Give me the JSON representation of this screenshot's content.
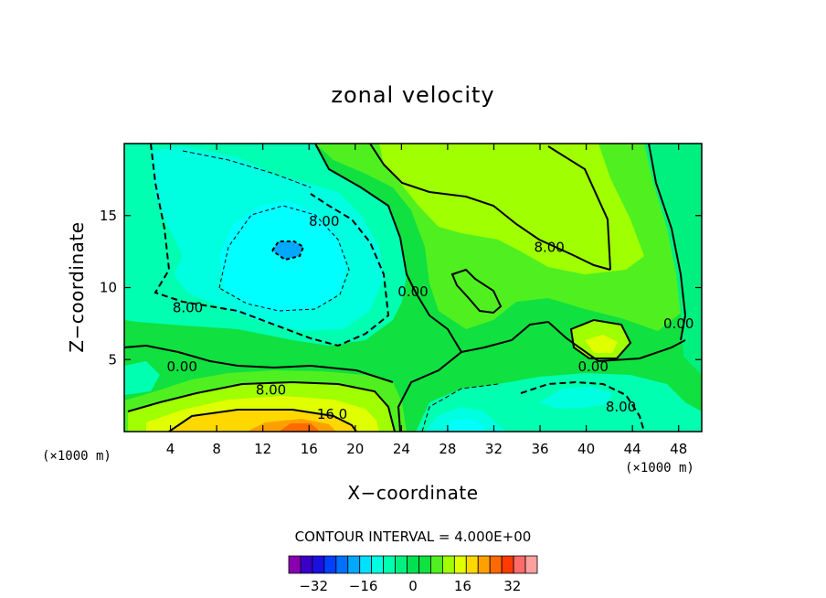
{
  "chart_data": {
    "type": "heatmap",
    "subtype": "filled-contour",
    "title": "zonal velocity",
    "xlabel": "X−coordinate",
    "ylabel": "Z−coordinate",
    "x_unit_label": "(×1000 m)",
    "x_unit_label_right": "(×1000 m)",
    "xlim": [
      0,
      50
    ],
    "ylim": [
      0,
      20
    ],
    "x_ticks": [
      4,
      8,
      12,
      16,
      20,
      24,
      28,
      32,
      36,
      40,
      44,
      48
    ],
    "y_ticks": [
      5,
      10,
      15
    ],
    "contour_interval_text": "CONTOUR INTERVAL = 4.000E+00",
    "contour_interval": 4,
    "colorbar": {
      "levels": [
        -40,
        -36,
        -32,
        -28,
        -24,
        -20,
        -16,
        -12,
        -8,
        -4,
        0,
        4,
        8,
        12,
        16,
        20,
        24,
        28,
        32,
        36,
        40
      ],
      "tick_labels": [
        "−32",
        "−16",
        "0",
        "16",
        "32"
      ],
      "tick_values": [
        -32,
        -16,
        0,
        16,
        32
      ],
      "colors": [
        "#8a00b0",
        "#3a00c8",
        "#1a10e0",
        "#0040ff",
        "#0070ff",
        "#00a8ff",
        "#00e0ff",
        "#00ffe0",
        "#00ffb0",
        "#00f080",
        "#00e050",
        "#10e040",
        "#50f020",
        "#a0ff00",
        "#e0ff00",
        "#ffd800",
        "#ffa000",
        "#ff6a00",
        "#ff3a00",
        "#ff6a6a",
        "#ffa0a0"
      ]
    },
    "contour_labels": [
      {
        "text": "8.00",
        "x": 17.3,
        "z": 14.6
      },
      {
        "text": "8.00",
        "x": 5.5,
        "z": 8.6
      },
      {
        "text": "8.00",
        "x": 36.8,
        "z": 12.8
      },
      {
        "text": "0.00",
        "x": 25.0,
        "z": 9.7
      },
      {
        "text": "0.00",
        "x": 5.0,
        "z": 4.5
      },
      {
        "text": "8.00",
        "x": 12.7,
        "z": 2.9
      },
      {
        "text": "16.0",
        "x": 18.0,
        "z": 1.2
      },
      {
        "text": "0.00",
        "x": 40.6,
        "z": 4.5
      },
      {
        "text": "8.00",
        "x": 43.0,
        "z": 1.7
      },
      {
        "text": "0.00",
        "x": 48.0,
        "z": 7.5
      }
    ],
    "field_values": [
      {
        "region": "domain background",
        "value": 4
      },
      {
        "region": "upper-left jet core",
        "x": 13.7,
        "z": 12.4,
        "value": -16
      },
      {
        "region": "upper-left core",
        "x": 12,
        "z": 12,
        "value": -12
      },
      {
        "region": "upper-right maximum",
        "x": 36,
        "z": 16,
        "value": 12
      },
      {
        "region": "lower-center maximum",
        "x": 16,
        "z": 0.6,
        "value": 24
      },
      {
        "region": "lower-right minimum",
        "x": 29,
        "z": 0.8,
        "value": -8
      }
    ],
    "grid": false,
    "legend": "bottom colorbar"
  }
}
